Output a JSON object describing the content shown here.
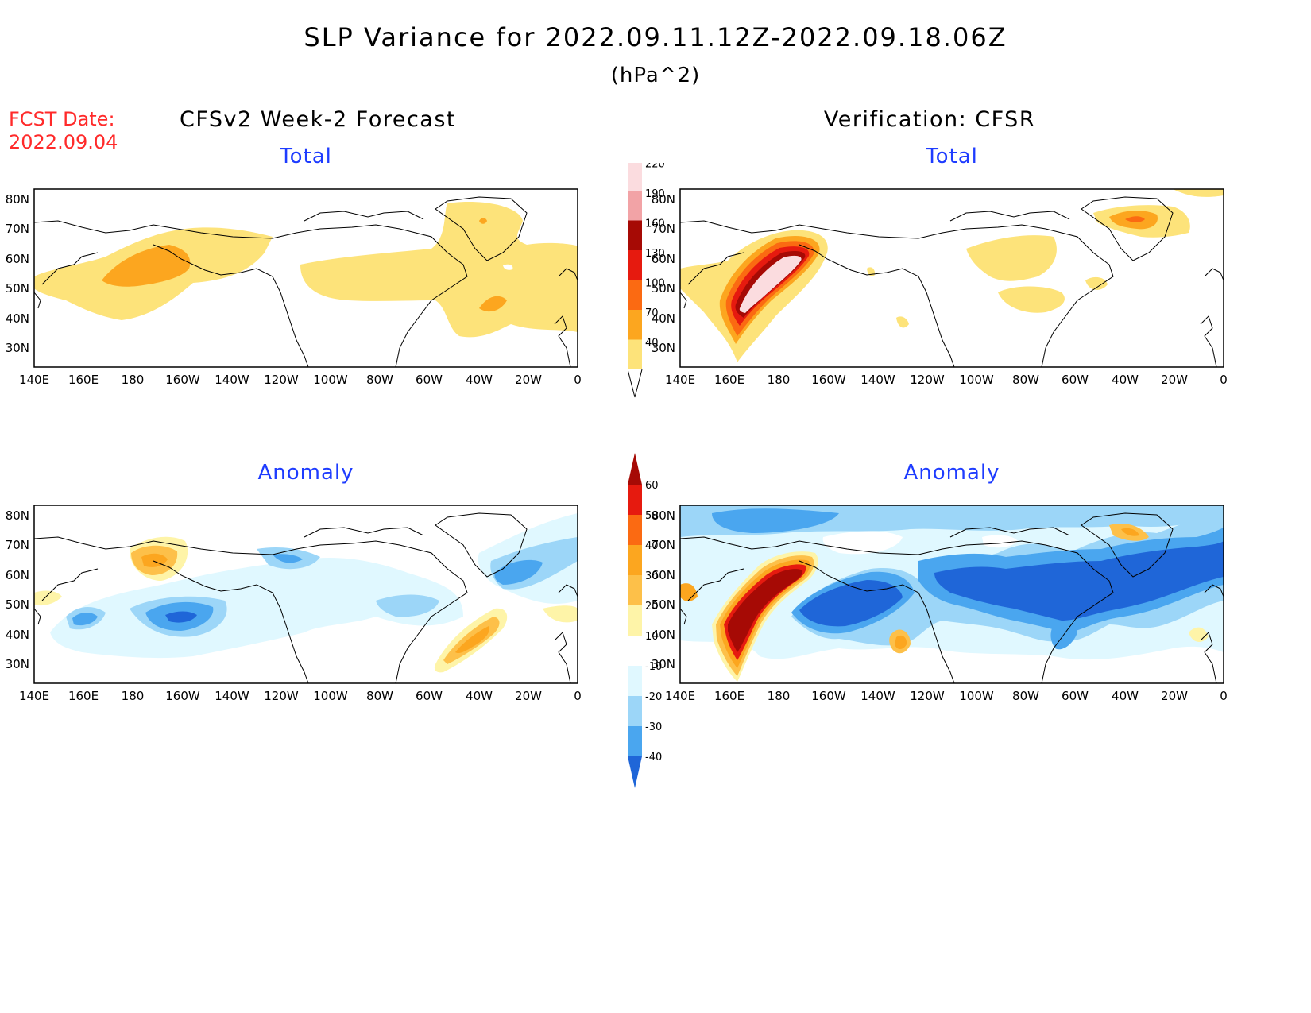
{
  "header": {
    "title": "SLP Variance for 2022.09.11.12Z-2022.09.18.06Z",
    "units": "(hPa^2)"
  },
  "forecast_date": {
    "label": "FCST Date:",
    "value": "2022.09.04"
  },
  "columns": {
    "left_title": "CFSv2 Week-2 Forecast",
    "right_title": "Verification: CFSR"
  },
  "panels": {
    "fcst_total_title": "Total",
    "verif_total_title": "Total",
    "fcst_anom_title": "Anomaly",
    "verif_anom_title": "Anomaly"
  },
  "axes": {
    "lat_labels": [
      "80N",
      "70N",
      "60N",
      "50N",
      "40N",
      "30N"
    ],
    "lon_labels": [
      "140E",
      "160E",
      "180",
      "160W",
      "140W",
      "120W",
      "100W",
      "80W",
      "60W",
      "40W",
      "20W",
      "0"
    ]
  },
  "colorbars": {
    "total": {
      "levels": [
        "40",
        "70",
        "100",
        "130",
        "160",
        "190",
        "220"
      ],
      "colors": [
        "#fde37a",
        "#fca61f",
        "#fb6a12",
        "#e61a0f",
        "#a60a05",
        "#f2a3a6",
        "#fbdcdf"
      ]
    },
    "anomaly": {
      "levels": [
        "60",
        "50",
        "40",
        "30",
        "20",
        "10",
        "-10",
        "-20",
        "-30",
        "-40"
      ],
      "colors": [
        "#a60a05",
        "#e61a0f",
        "#fb6a12",
        "#fca61f",
        "#fdc049",
        "#fef4a8",
        "#ffffff",
        "#e0f8ff",
        "#9cd6f8",
        "#4aa6ef",
        "#1f66d8"
      ]
    }
  }
}
